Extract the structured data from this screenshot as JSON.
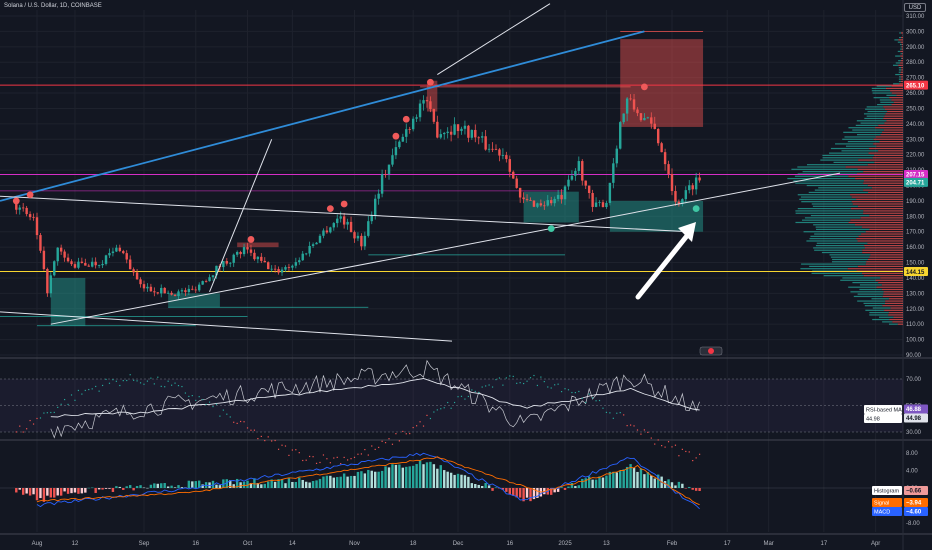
{
  "header": {
    "title": "Solana / U.S. Dollar, 1D, COINBASE",
    "currency": "USD"
  },
  "chart_data": [
    {
      "type": "candlestick",
      "title": "Solana / U.S. Dollar, 1D, COINBASE",
      "yaxis_ticks": [
        310,
        300,
        290,
        280,
        270,
        260,
        250,
        240,
        230,
        220,
        210,
        200,
        190,
        180,
        170,
        160,
        150,
        140,
        130,
        120,
        110,
        100,
        90
      ],
      "ylim": [
        90,
        315
      ],
      "xaxis_ticks": [
        "Aug",
        "12",
        "Sep",
        "16",
        "Oct",
        "14",
        "Nov",
        "18",
        "Dec",
        "16",
        "2025",
        "13",
        "Feb",
        "17",
        "Mar",
        "17",
        "Apr"
      ],
      "price_labels": {
        "resistance": "265.10",
        "support": "144.15",
        "current": "204.71",
        "magenta_line": "207.15"
      },
      "price_path": [
        {
          "date": "Jul 26",
          "price": 188
        },
        {
          "date": "Jul 28",
          "price": 184
        },
        {
          "date": "Aug 1",
          "price": 178
        },
        {
          "date": "Aug 5",
          "price": 132
        },
        {
          "date": "Aug 8",
          "price": 158
        },
        {
          "date": "Aug 12",
          "price": 148
        },
        {
          "date": "Aug 20",
          "price": 150
        },
        {
          "date": "Aug 26",
          "price": 160
        },
        {
          "date": "Sep 1",
          "price": 134
        },
        {
          "date": "Sep 6",
          "price": 132
        },
        {
          "date": "Sep 10",
          "price": 130
        },
        {
          "date": "Sep 16",
          "price": 132
        },
        {
          "date": "Sep 24",
          "price": 148
        },
        {
          "date": "Oct 1",
          "price": 158
        },
        {
          "date": "Oct 10",
          "price": 144
        },
        {
          "date": "Oct 16",
          "price": 150
        },
        {
          "date": "Oct 24",
          "price": 170
        },
        {
          "date": "Oct 29",
          "price": 180
        },
        {
          "date": "Nov 4",
          "price": 162
        },
        {
          "date": "Nov 10",
          "price": 205
        },
        {
          "date": "Nov 16",
          "price": 232
        },
        {
          "date": "Nov 22",
          "price": 256
        },
        {
          "date": "Nov 26",
          "price": 235
        },
        {
          "date": "Dec 2",
          "price": 238
        },
        {
          "date": "Dec 6",
          "price": 234
        },
        {
          "date": "Dec 10",
          "price": 226
        },
        {
          "date": "Dec 16",
          "price": 220
        },
        {
          "date": "Dec 20",
          "price": 190
        },
        {
          "date": "Dec 26",
          "price": 188
        },
        {
          "date": "Jan 1",
          "price": 192
        },
        {
          "date": "Jan 6",
          "price": 214
        },
        {
          "date": "Jan 10",
          "price": 185
        },
        {
          "date": "Jan 14",
          "price": 190
        },
        {
          "date": "Jan 18",
          "price": 240
        },
        {
          "date": "Jan 20",
          "price": 255
        },
        {
          "date": "Jan 24",
          "price": 245
        },
        {
          "date": "Jan 28",
          "price": 236
        },
        {
          "date": "Feb 1",
          "price": 210
        },
        {
          "date": "Feb 3",
          "price": 188
        },
        {
          "date": "Feb 6",
          "price": 195
        },
        {
          "date": "Feb 9",
          "price": 204
        }
      ],
      "zones": [
        {
          "name": "supply-zone-november",
          "type": "supply",
          "date_start": "Nov 22",
          "date_end": "Nov 25",
          "price_low": 248,
          "price_high": 268
        },
        {
          "name": "supply-zone-september",
          "type": "supply",
          "date_start": "Sep 28",
          "date_end": "Oct 10",
          "price_low": 160,
          "price_high": 163
        },
        {
          "name": "supply-zone-january",
          "type": "supply",
          "date_start": "Jan 17",
          "date_end": "Feb 10",
          "price_low": 238,
          "price_high": 295
        },
        {
          "name": "demand-zone-august",
          "type": "demand",
          "date_start": "Aug 5",
          "date_end": "Aug 15",
          "price_low": 109,
          "price_high": 140
        },
        {
          "name": "demand-zone-september",
          "type": "demand",
          "date_start": "Sep 8",
          "date_end": "Sep 23",
          "price_low": 121,
          "price_high": 130
        },
        {
          "name": "demand-zone-december",
          "type": "demand",
          "date_start": "Dec 20",
          "date_end": "Jan 5",
          "price_low": 176,
          "price_high": 196
        },
        {
          "name": "demand-zone-february",
          "type": "demand",
          "date_start": "Jan 14",
          "date_end": "Feb 10",
          "price_low": 170,
          "price_high": 190
        }
      ],
      "signals": {
        "sell": [
          {
            "date": "Jul 26",
            "price": 190
          },
          {
            "date": "Jul 30",
            "price": 194
          },
          {
            "date": "Oct 2",
            "price": 165
          },
          {
            "date": "Oct 25",
            "price": 185
          },
          {
            "date": "Oct 29",
            "price": 188
          },
          {
            "date": "Nov 13",
            "price": 232
          },
          {
            "date": "Nov 16",
            "price": 243
          },
          {
            "date": "Nov 23",
            "price": 267
          },
          {
            "date": "Jan 24",
            "price": 264
          }
        ],
        "buy": [
          {
            "date": "Dec 28",
            "price": 172
          },
          {
            "date": "Feb 8",
            "price": 185
          }
        ]
      }
    },
    {
      "type": "line",
      "name_label": "RSI-based MA",
      "yaxis_ticks": [
        70.0,
        50.0,
        30.0
      ],
      "ylim": [
        25,
        80
      ],
      "labels": {
        "rsi": "44.98",
        "ma": "44.98",
        "top": "46.88"
      },
      "rsi_path": [
        {
          "date": "Aug 5",
          "rsi": 32
        },
        {
          "date": "Sep 1",
          "rsi": 48
        },
        {
          "date": "Nov 22",
          "rsi": 78
        },
        {
          "date": "Dec 20",
          "rsi": 35
        },
        {
          "date": "Jan 20",
          "rsi": 72
        },
        {
          "date": "Feb 9",
          "rsi": 46
        }
      ],
      "ma_path": [
        {
          "date": "Aug 5",
          "ma": 42
        },
        {
          "date": "Sep 1",
          "ma": 45
        },
        {
          "date": "Nov 22",
          "ma": 70
        },
        {
          "date": "Dec 20",
          "ma": 48
        },
        {
          "date": "Jan 20",
          "ma": 62
        },
        {
          "date": "Feb 9",
          "ma": 46
        }
      ]
    },
    {
      "type": "bar",
      "yaxis_ticks": [
        8.0,
        4.0,
        0.0,
        -4.0,
        -8.0
      ],
      "ylim": [
        -9,
        10
      ],
      "labels": {
        "histogram": "Histogram",
        "histogram_value": "−0.66",
        "signal": "Signal",
        "signal_value": "−3.94",
        "macd": "MACD",
        "macd_value": "−4.60"
      },
      "histogram_path": [
        {
          "date": "Aug 1",
          "value": -3
        },
        {
          "date": "Aug 10",
          "value": -1
        },
        {
          "date": "Sep 15",
          "value": 1
        },
        {
          "date": "Oct 20",
          "value": 2
        },
        {
          "date": "Nov 22",
          "value": 6
        },
        {
          "date": "Dec 20",
          "value": -3
        },
        {
          "date": "Jan 20",
          "value": 5
        },
        {
          "date": "Feb 9",
          "value": -1
        }
      ],
      "macd_path": [
        {
          "date": "Aug 1",
          "value": -4
        },
        {
          "date": "Sep 15",
          "value": 0
        },
        {
          "date": "Nov 22",
          "value": 8
        },
        {
          "date": "Dec 20",
          "value": -3
        },
        {
          "date": "Jan 20",
          "value": 7
        },
        {
          "date": "Feb 9",
          "value": -5
        }
      ],
      "signal_path": [
        {
          "date": "Aug 1",
          "value": -3
        },
        {
          "date": "Sep 15",
          "value": -1
        },
        {
          "date": "Nov 25",
          "value": 7
        },
        {
          "date": "Dec 25",
          "value": -1
        },
        {
          "date": "Jan 22",
          "value": 5
        },
        {
          "date": "Feb 9",
          "value": -4
        }
      ]
    }
  ],
  "colors": {
    "background": "#131722",
    "up": "#26a69a",
    "down": "#ef5350",
    "channel_line": "#2f8cd8",
    "resistance": "#f23645",
    "support": "#f7d530",
    "magenta": "#d62ec6",
    "trendline": "#e0e3eb",
    "rsi": "#c7c9d1",
    "macd": "#2962ff",
    "signal": "#ff6d00"
  },
  "icons": {
    "annotation_arrow": "arrow-icon",
    "flag": "us-flag-icon"
  }
}
